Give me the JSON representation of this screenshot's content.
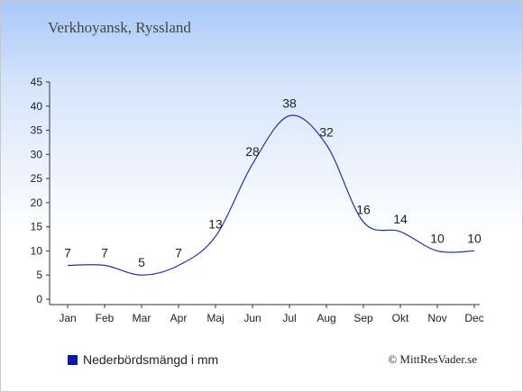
{
  "title": "Verkhoyansk, Ryssland",
  "legend_label": "Nederbördsmängd i mm",
  "credit": "© MittResVader.se",
  "colors": {
    "series": "#2233aa",
    "swatch": "#0a1aa8",
    "axis": "#333333"
  },
  "chart_data": {
    "type": "line",
    "categories": [
      "Jan",
      "Feb",
      "Mar",
      "Apr",
      "Maj",
      "Jun",
      "Jul",
      "Aug",
      "Sep",
      "Okt",
      "Nov",
      "Dec"
    ],
    "series": [
      {
        "name": "Nederbördsmängd i mm",
        "values": [
          7,
          7,
          5,
          7,
          13,
          28,
          38,
          32,
          16,
          14,
          10,
          10
        ]
      }
    ],
    "y_ticks": [
      0,
      5,
      10,
      15,
      20,
      25,
      30,
      35,
      40,
      45
    ],
    "ylim": [
      0,
      45
    ],
    "grid": false,
    "legend_position": "bottom-left"
  }
}
